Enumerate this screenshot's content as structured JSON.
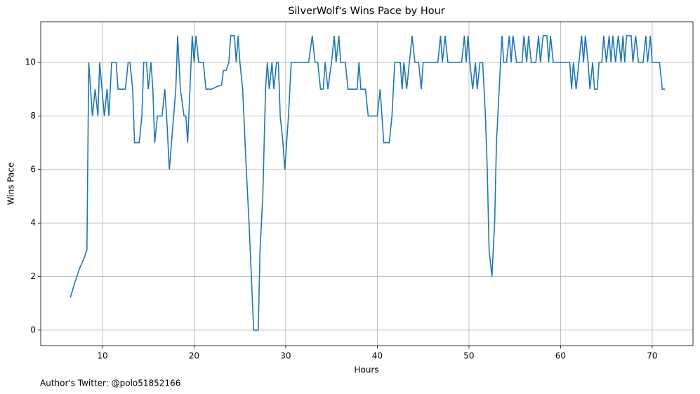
{
  "chart_data": {
    "type": "line",
    "title": "SilverWolf's Wins Pace by Hour",
    "x_label": "Hours",
    "y_label": "Wins Pace",
    "footnote": "Author's Twitter: @polo51852166",
    "color": "#1f77b4",
    "grid": true,
    "xlim": [
      3.26,
      74.45
    ],
    "ylim": [
      -0.58,
      11.52
    ],
    "xticks": [
      10,
      20,
      30,
      40,
      50,
      60,
      70
    ],
    "yticks": [
      0,
      2,
      4,
      6,
      8,
      10
    ],
    "x": [
      6.5,
      7,
      7.5,
      8,
      8.3,
      8.5,
      8.9,
      9.2,
      9.5,
      9.7,
      10.2,
      10.5,
      10.7,
      11,
      11.5,
      11.7,
      12.5,
      12.8,
      13,
      13.3,
      13.5,
      14,
      14.3,
      14.5,
      14.8,
      15,
      15.3,
      15.5,
      15.7,
      16,
      16.5,
      16.8,
      17,
      17.3,
      18,
      18.2,
      18.5,
      18.9,
      19.1,
      19.3,
      19.8,
      20,
      20.2,
      20.5,
      21,
      21.3,
      21.9,
      22.5,
      23,
      23.2,
      23.5,
      23.8,
      24,
      24.4,
      24.6,
      24.8,
      25,
      25.3,
      25.7,
      26,
      26.5,
      27,
      27.2,
      27.5,
      27.8,
      28,
      28.2,
      28.5,
      28.7,
      29,
      29.2,
      29.4,
      29.7,
      29.9,
      30.3,
      30.6,
      31.5,
      32.5,
      32.9,
      33.2,
      33.5,
      33.8,
      34.1,
      34.3,
      34.6,
      35,
      35.3,
      35.5,
      35.8,
      36,
      36.5,
      36.8,
      37.5,
      37.8,
      38,
      38.2,
      38.7,
      39,
      40,
      40.3,
      40.7,
      41.3,
      41.6,
      41.9,
      42.5,
      42.7,
      42.9,
      43.2,
      43.5,
      43.8,
      44.1,
      44.5,
      44.8,
      45,
      46.6,
      46.9,
      47.1,
      47.4,
      47.7,
      49.2,
      49.5,
      49.7,
      49.9,
      50.1,
      50.4,
      50.7,
      50.9,
      51.2,
      51.5,
      51.8,
      52,
      52.2,
      52.5,
      52.8,
      53,
      53.3,
      53.6,
      53.8,
      54.1,
      54.4,
      54.6,
      54.8,
      55.2,
      55.8,
      56,
      56.3,
      56.5,
      56.8,
      57.3,
      57.6,
      57.8,
      58.1,
      58.5,
      58.7,
      58.9,
      59.2,
      60.5,
      61,
      61.2,
      61.4,
      61.7,
      62,
      62.3,
      62.5,
      62.7,
      63,
      63.2,
      63.5,
      63.7,
      64,
      64.2,
      64.5,
      64.7,
      65,
      65.3,
      65.5,
      65.7,
      66,
      66.3,
      66.6,
      66.8,
      67,
      67.2,
      67.7,
      67.9,
      68.2,
      68.5,
      69,
      69.3,
      69.5,
      69.8,
      70,
      70.8,
      71.1,
      71.4
    ],
    "values": [
      1.22,
      1.8,
      2.3,
      2.7,
      3.0,
      10,
      8,
      9,
      8,
      10,
      8,
      9,
      8,
      10,
      10,
      9,
      9,
      10,
      10,
      9,
      7,
      7,
      8,
      10,
      10,
      9,
      10,
      9,
      7,
      8,
      8,
      9,
      8,
      6,
      9,
      11,
      9,
      8,
      8,
      7,
      11,
      10,
      11,
      10,
      10,
      9,
      9,
      9.1,
      9.15,
      9.7,
      9.7,
      10,
      11,
      11,
      10,
      11,
      10,
      9,
      6,
      4,
      0,
      0,
      3,
      5,
      9,
      10,
      9,
      10,
      9,
      10,
      10,
      8,
      7,
      6,
      8,
      10,
      10,
      10,
      11,
      10,
      10,
      9,
      9,
      10,
      9,
      10,
      11,
      10,
      11,
      10,
      10,
      9,
      9,
      9,
      10,
      9,
      9,
      8,
      8,
      9,
      7,
      7,
      8,
      10,
      10,
      9,
      10,
      9,
      10,
      11,
      10,
      10,
      9,
      10,
      10,
      11,
      10,
      11,
      10,
      10,
      11,
      10,
      11,
      10,
      9,
      10,
      9,
      10,
      10,
      8,
      6,
      3,
      2,
      4,
      7,
      9,
      11,
      10,
      10,
      11,
      10,
      11,
      10,
      10,
      11,
      10,
      11,
      10,
      10,
      11,
      10,
      11,
      11,
      10,
      11,
      10,
      10,
      10,
      9,
      10,
      9,
      10,
      11,
      10,
      11,
      10,
      9,
      10,
      9,
      9,
      10,
      10,
      11,
      10,
      11,
      10,
      11,
      10,
      11,
      10,
      11,
      10,
      11,
      11,
      10,
      11,
      10,
      10,
      11,
      10,
      11,
      10,
      10,
      9,
      9
    ]
  }
}
